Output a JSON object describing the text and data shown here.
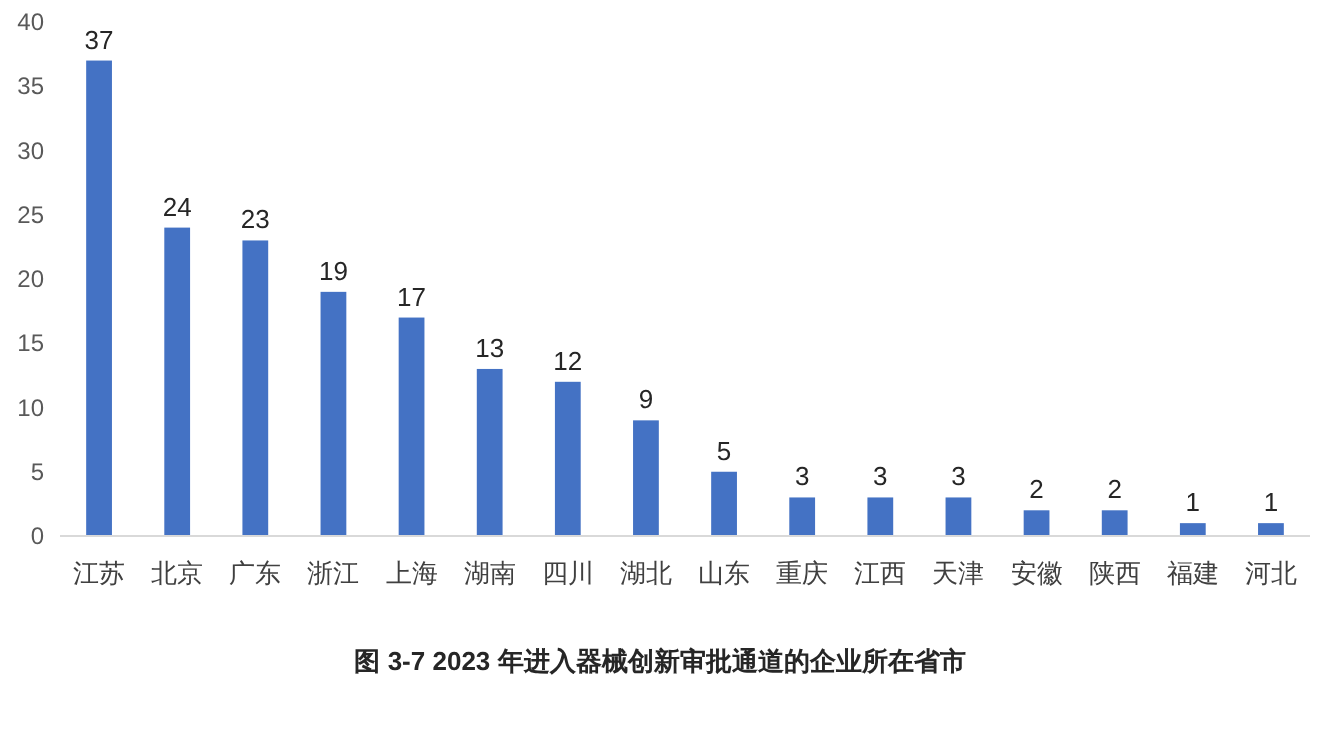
{
  "chart_data": {
    "type": "bar",
    "title": "图 3-7 2023 年进入器械创新审批通道的企业所在省市",
    "categories": [
      "江苏",
      "北京",
      "广东",
      "浙江",
      "上海",
      "湖南",
      "四川",
      "湖北",
      "山东",
      "重庆",
      "江西",
      "天津",
      "安徽",
      "陕西",
      "福建",
      "河北"
    ],
    "values": [
      37,
      24,
      23,
      19,
      17,
      13,
      12,
      9,
      5,
      3,
      3,
      3,
      2,
      2,
      1,
      1
    ],
    "color": "#4472c4",
    "ylim": [
      0,
      40
    ],
    "yticks": [
      0,
      5,
      10,
      15,
      20,
      25,
      30,
      35,
      40
    ],
    "data_labels": true,
    "grid": false
  }
}
